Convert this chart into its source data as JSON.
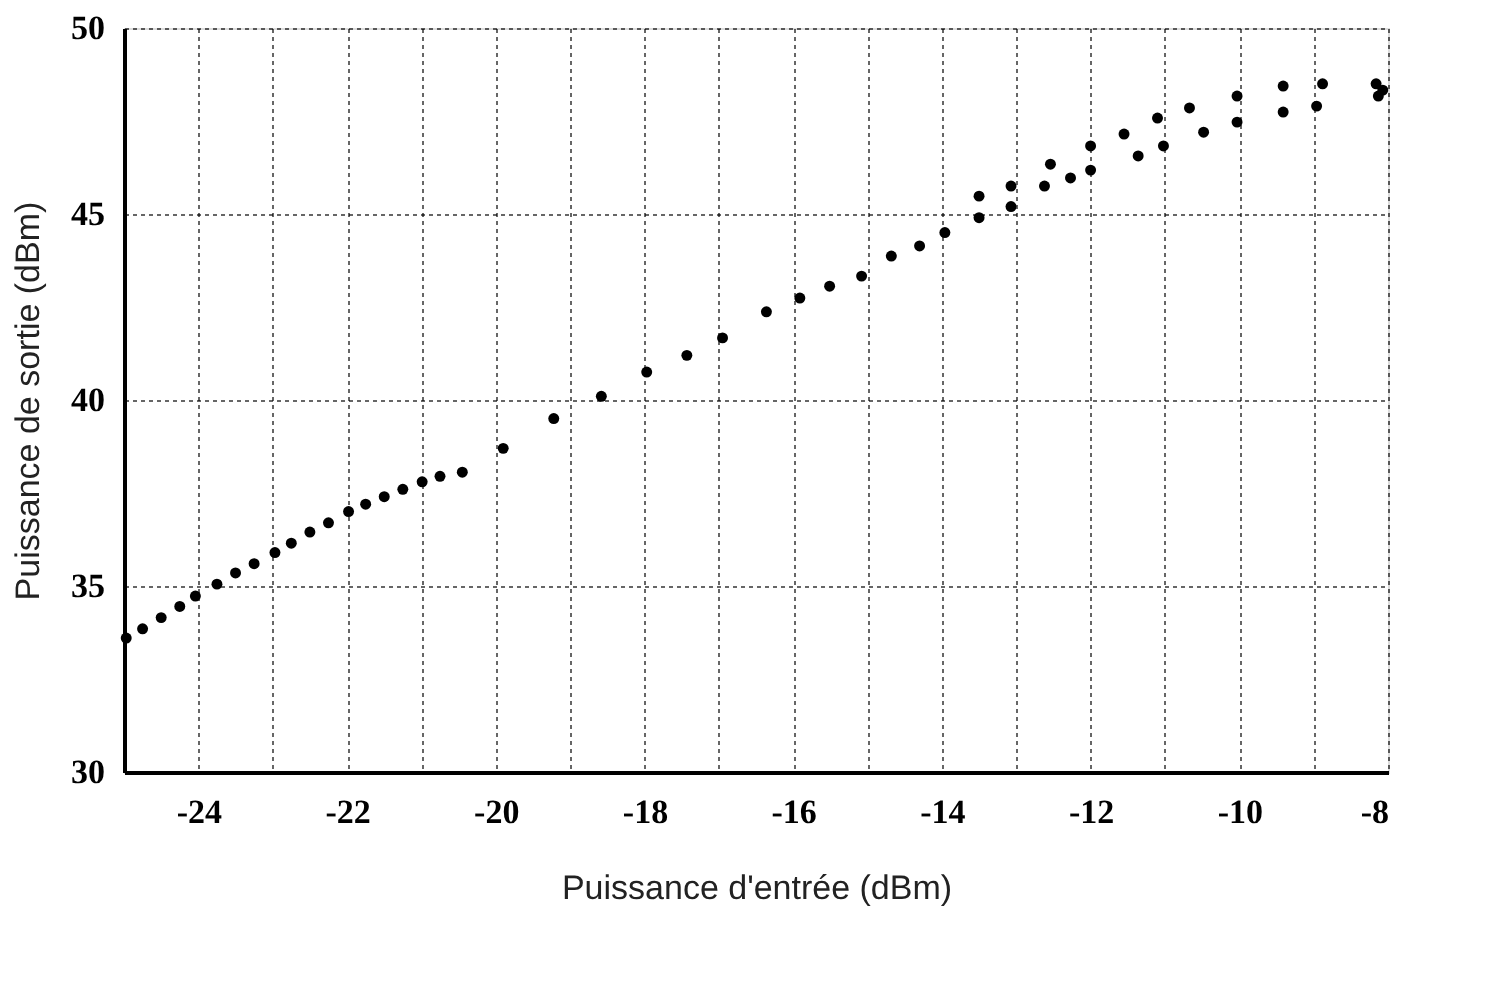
{
  "chart_data": {
    "type": "scatter",
    "xlabel": "Puissance d'entrée (dBm)",
    "ylabel": "Puissance de sortie  (dBm)",
    "xlim": [
      -25,
      -8
    ],
    "ylim": [
      30,
      50
    ],
    "xticks": [
      {
        "value": -25,
        "label": null
      },
      -24,
      {
        "value": -23,
        "label": null
      },
      -22,
      {
        "value": -21,
        "label": null
      },
      -20,
      {
        "value": -19,
        "label": null
      },
      -18,
      {
        "value": -17,
        "label": null
      },
      -16,
      {
        "value": -15,
        "label": null
      },
      -14,
      {
        "value": -13,
        "label": null
      },
      -12,
      {
        "value": -11,
        "label": null
      },
      -10,
      {
        "value": -9,
        "label": null
      },
      -8
    ],
    "yticks": [
      30,
      35,
      40,
      45,
      50
    ],
    "grid": true,
    "marker": "circle",
    "series": [
      {
        "color": "#000000",
        "x": [
          -24.97,
          -24.75,
          -24.5,
          -24.25,
          -24.04,
          -23.75,
          -23.5,
          -23.25,
          -22.97,
          -22.75,
          -22.5,
          -22.25,
          -21.98,
          -21.75,
          -21.5,
          -21.25,
          -20.99,
          -20.75,
          -20.45,
          -19.9,
          -19.22,
          -18.58,
          -17.97,
          -17.43,
          -16.95,
          -16.36,
          -15.91,
          -15.51,
          -15.08,
          -14.68,
          -14.3,
          -13.96,
          -13.5,
          -13.07,
          -12.62,
          -12.27,
          -12.0,
          -11.36,
          -11.02,
          -10.48,
          -10.03,
          -9.41,
          -8.96,
          -8.13,
          -8.07,
          -8.16,
          -8.88,
          -9.41,
          -10.03,
          -10.67,
          -11.1,
          -11.55,
          -12.0,
          -12.54,
          -13.07,
          -13.5
        ],
        "values": [
          33.6,
          33.85,
          34.15,
          34.45,
          34.73,
          35.05,
          35.35,
          35.6,
          35.9,
          36.15,
          36.45,
          36.7,
          37.0,
          37.2,
          37.4,
          37.6,
          37.8,
          37.95,
          38.06,
          38.7,
          39.5,
          40.1,
          40.75,
          41.2,
          41.67,
          42.37,
          42.74,
          43.06,
          43.33,
          43.87,
          44.14,
          44.5,
          44.9,
          45.2,
          45.75,
          45.97,
          46.18,
          46.56,
          46.83,
          47.2,
          47.47,
          47.74,
          47.9,
          48.17,
          48.33,
          48.5,
          48.5,
          48.44,
          48.17,
          47.85,
          47.58,
          47.15,
          46.83,
          46.34,
          45.75,
          45.48
        ]
      }
    ]
  }
}
